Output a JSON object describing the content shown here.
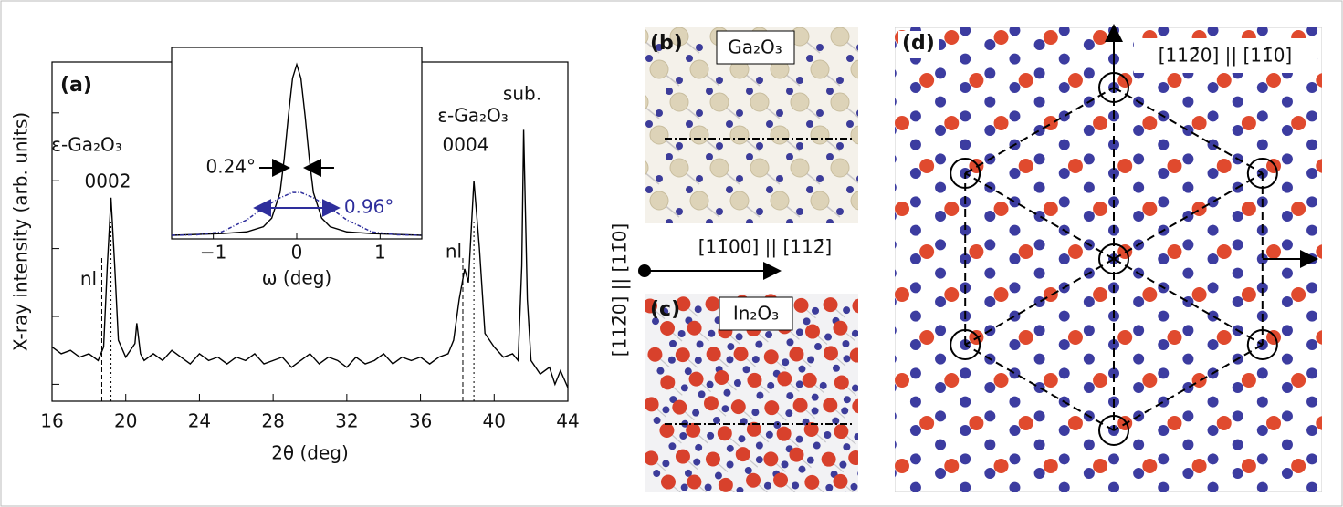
{
  "chart_data": [
    {
      "type": "line",
      "panel_label": "(a)",
      "x_label": "2θ (deg)",
      "y_label": "X-ray intensity (arb. units)",
      "x": [
        16,
        16.5,
        17,
        17.5,
        18,
        18.5,
        18.8,
        19.0,
        19.2,
        19.4,
        19.6,
        20,
        20.5,
        20.6,
        20.8,
        21,
        21.5,
        22,
        22.5,
        23,
        23.5,
        24,
        24.5,
        25,
        25.5,
        26,
        26.5,
        27,
        27.5,
        28,
        28.5,
        29,
        29.5,
        30,
        30.5,
        31,
        31.5,
        32,
        32.5,
        33,
        33.5,
        34,
        34.5,
        35,
        35.5,
        36,
        36.5,
        37,
        37.5,
        37.8,
        38.1,
        38.4,
        38.6,
        38.9,
        39.2,
        39.5,
        40,
        40.5,
        41,
        41.3,
        41.5,
        41.6,
        41.8,
        42,
        42.5,
        43,
        43.3,
        43.6,
        44
      ],
      "series": [
        {
          "color": "#000000",
          "values": [
            16,
            14,
            15,
            13,
            14,
            12,
            16,
            40,
            60,
            40,
            18,
            13,
            17,
            23,
            14,
            12,
            14,
            12,
            15,
            13,
            11,
            14,
            12,
            13,
            11,
            13,
            12,
            14,
            11,
            12,
            13,
            10,
            12,
            14,
            11,
            13,
            12,
            10,
            13,
            11,
            12,
            14,
            11,
            13,
            12,
            13,
            11,
            13,
            14,
            18,
            30,
            39,
            35,
            65,
            45,
            20,
            16,
            13,
            14,
            12,
            40,
            80,
            30,
            12,
            8,
            10,
            5,
            9,
            4
          ]
        }
      ],
      "xlim": [
        16,
        44
      ],
      "xticks": [
        16,
        20,
        24,
        28,
        32,
        36,
        40,
        44
      ],
      "ylim": [
        0,
        100
      ],
      "yticks": [
        5,
        25,
        45,
        65,
        85
      ],
      "reference_lines": [
        {
          "x": 18.7,
          "style": "dashed"
        },
        {
          "x": 19.2,
          "style": "dotted"
        },
        {
          "x": 38.3,
          "style": "dashed"
        },
        {
          "x": 38.9,
          "style": "dotted"
        }
      ],
      "annotations": [
        "ε-Ga₂O₃",
        "0002",
        "nl",
        "ε-Ga₂O₃",
        "0004",
        "nl",
        "sub."
      ]
    },
    {
      "type": "line",
      "x_label": "ω (deg)",
      "x": [
        -1.5,
        -1.2,
        -0.9,
        -0.6,
        -0.4,
        -0.3,
        -0.2,
        -0.15,
        -0.1,
        -0.05,
        0,
        0.05,
        0.1,
        0.15,
        0.2,
        0.3,
        0.4,
        0.6,
        0.9,
        1.2,
        1.5
      ],
      "series": [
        {
          "color": "#000000",
          "values": [
            0,
            0.005,
            0.01,
            0.02,
            0.05,
            0.1,
            0.25,
            0.45,
            0.7,
            0.92,
            1,
            0.92,
            0.7,
            0.45,
            0.25,
            0.1,
            0.05,
            0.02,
            0.01,
            0.005,
            0
          ]
        },
        {
          "color": "#2e2e9c",
          "dashed": true,
          "values": [
            0,
            0.003,
            0.02,
            0.09,
            0.16,
            0.19,
            0.22,
            0.23,
            0.24,
            0.25,
            0.25,
            0.25,
            0.24,
            0.23,
            0.22,
            0.19,
            0.16,
            0.09,
            0.02,
            0.003,
            0
          ]
        }
      ],
      "xlim": [
        -1.5,
        1.5
      ],
      "xticks": [
        {
          "value": -1,
          "label": "−1"
        },
        0,
        1
      ],
      "ylim": [
        0,
        1.1
      ],
      "widths": [
        {
          "value": 0.24,
          "label": "0.24°"
        },
        {
          "value": 0.96,
          "label": "0.96°"
        }
      ]
    }
  ],
  "panels": {
    "b": {
      "label": "(b)",
      "material": "Ga₂O₃"
    },
    "c": {
      "label": "(c)",
      "material": "In₂O₃"
    },
    "d": {
      "label": "(d)",
      "direction": "[112̄0] || [11̄0]"
    },
    "axes": {
      "horizontal": "[11̄00] || [112̄]",
      "vertical": "[112̄0] || [11̄0]"
    }
  }
}
